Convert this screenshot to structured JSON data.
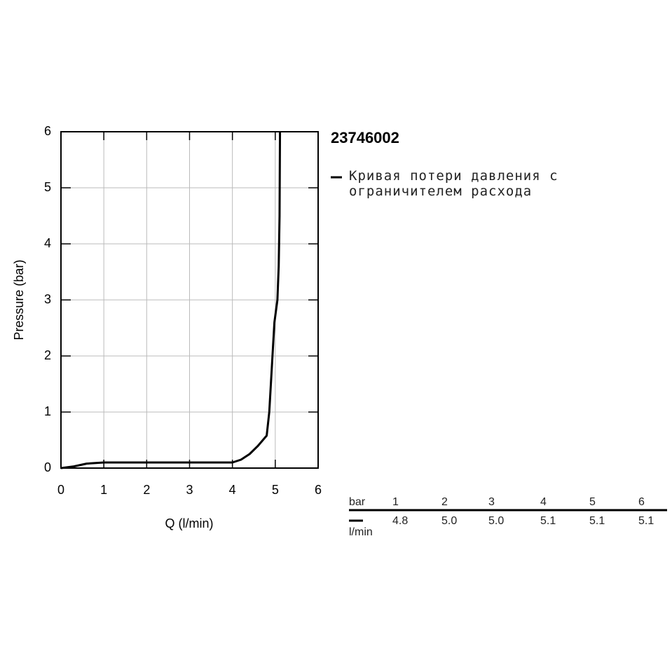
{
  "chart_data": {
    "type": "line",
    "title": "23746002",
    "xlabel": "Q (l/min)",
    "ylabel": "Pressure (bar)",
    "xlim": [
      0,
      6
    ],
    "ylim": [
      0,
      6
    ],
    "xticks": [
      0,
      1,
      2,
      3,
      4,
      5,
      6
    ],
    "yticks": [
      0,
      1,
      2,
      3,
      4,
      5,
      6
    ],
    "grid": true,
    "series": [
      {
        "name": "Кривая потери давления с ограничителем расхода",
        "color": "#000000",
        "x": [
          0,
          0.3,
          0.6,
          1,
          2,
          3,
          4,
          4.2,
          4.4,
          4.6,
          4.8,
          4.86,
          4.92,
          4.98,
          5.05,
          5.08,
          5.1,
          5.11
        ],
        "values": [
          0,
          0.03,
          0.08,
          0.1,
          0.1,
          0.1,
          0.1,
          0.15,
          0.25,
          0.4,
          0.58,
          1,
          1.8,
          2.6,
          3.0,
          3.6,
          4.5,
          6
        ]
      }
    ]
  },
  "table": {
    "header": [
      "bar",
      "1",
      "2",
      "3",
      "4",
      "5",
      "6"
    ],
    "unit": "l/min",
    "rows": [
      [
        "4.8",
        "5.0",
        "5.0",
        "5.1",
        "5.1",
        "5.1"
      ]
    ]
  }
}
